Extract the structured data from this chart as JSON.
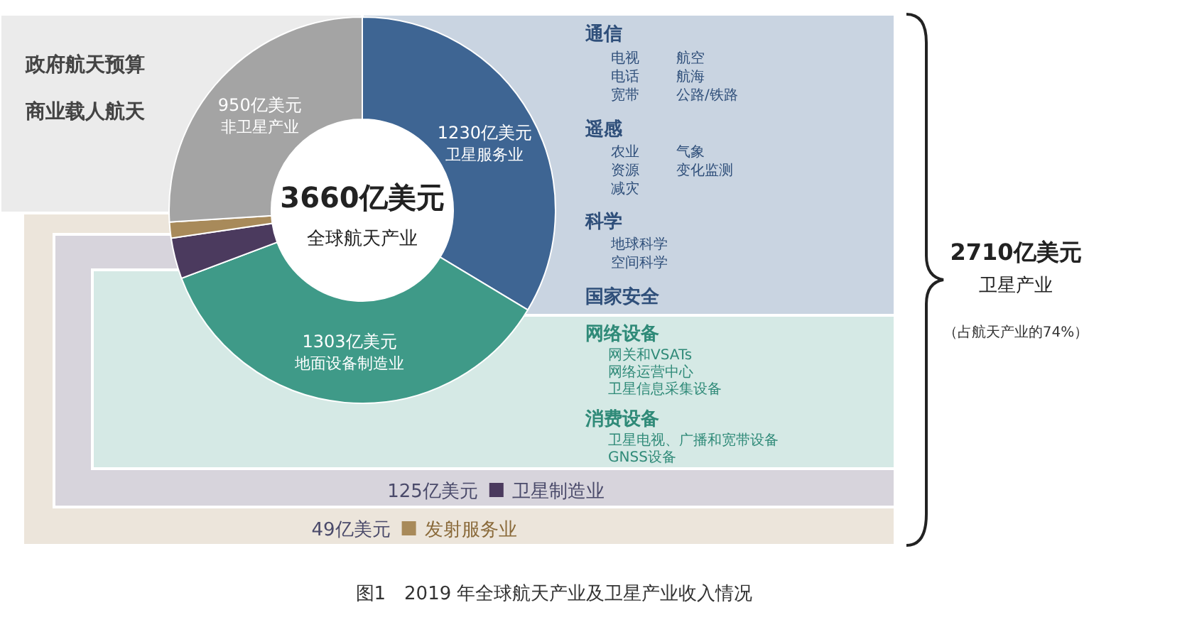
{
  "chart_data": {
    "type": "donut",
    "title": "图1　2019 年全球航天产业及卫星产业收入情况",
    "categories": [
      "卫星服务业",
      "地面设备制造业",
      "卫星制造业",
      "发射服务业",
      "非卫星产业"
    ],
    "values": [
      1230,
      1303,
      125,
      49,
      950
    ],
    "colors": [
      "#3e6593",
      "#3f9a88",
      "#4b3a5e",
      "#a88a5a",
      "#a4a4a4"
    ],
    "value_labels": [
      "1230亿美元",
      "1303亿美元",
      "125亿美元",
      "49亿美元",
      "950亿美元"
    ],
    "legend": "bottom",
    "annotations": [
      "3660亿美元",
      "全球航天产业",
      "政府航天预算",
      "商业载人航天",
      "通信",
      "电视",
      "航空",
      "电话",
      "航海",
      "宽带",
      "公路/铁路",
      "遥感",
      "农业",
      "气象",
      "资源",
      "变化监测",
      "减灾",
      "科学",
      "地球科学",
      "空间科学",
      "国家安全",
      "网络设备",
      "网关和VSATs",
      "网络运营中心",
      "卫星信息采集设备",
      "消费设备",
      "卫星电视、广播和宽带设备",
      "GNSS设备",
      "2710亿美元",
      "卫星产业",
      "（占航天产业的74%）"
    ]
  }
}
